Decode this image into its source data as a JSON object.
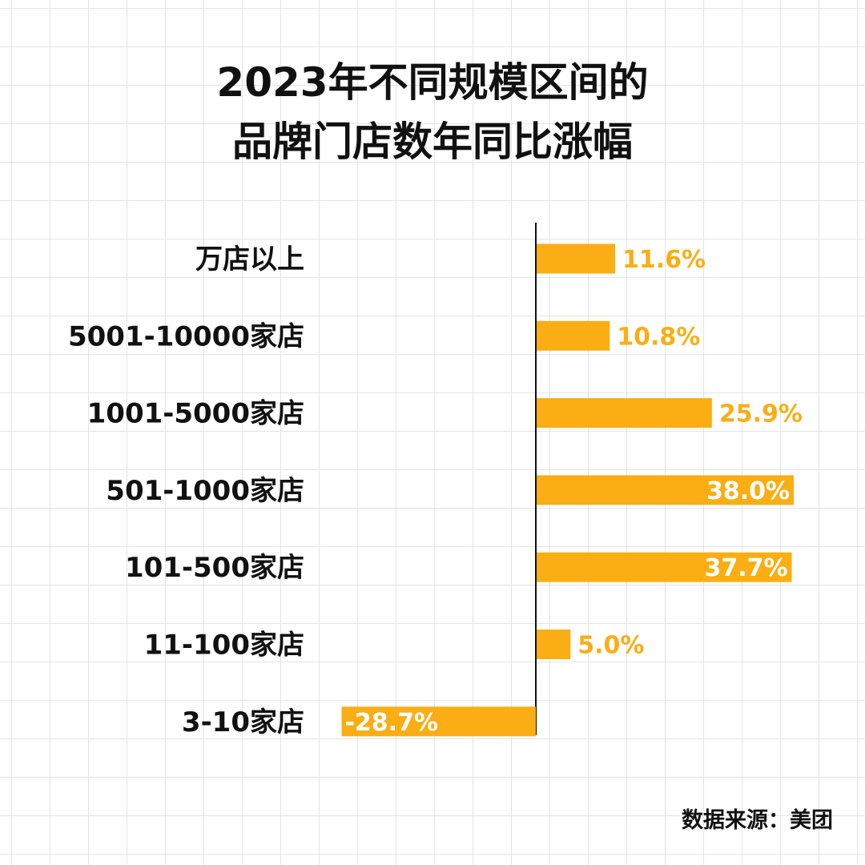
{
  "title": {
    "line1": "2023年不同规模区间的",
    "line2": "品牌门店数年同比涨幅"
  },
  "source": "数据来源：美团",
  "colors": {
    "bar": "#FAAE14",
    "label_outside": "#FAAE14",
    "label_inside": "#FFFFFF",
    "text": "#111111",
    "axis": "#111111"
  },
  "chart_data": {
    "type": "bar",
    "orientation": "horizontal",
    "categories": [
      "万店以上",
      "5001-10000家店",
      "1001-5000家店",
      "501-1000家店",
      "101-500家店",
      "11-100家店",
      "3-10家店"
    ],
    "values": [
      11.6,
      10.8,
      25.9,
      38.0,
      37.7,
      5.0,
      -28.7
    ],
    "labels": [
      "11.6%",
      "10.8%",
      "25.9%",
      "38.0%",
      "37.7%",
      "5.0%",
      "-28.7%"
    ],
    "unit": "%",
    "title": "2023年不同规模区间的品牌门店数年同比涨幅",
    "grid": false,
    "legend": "none"
  }
}
